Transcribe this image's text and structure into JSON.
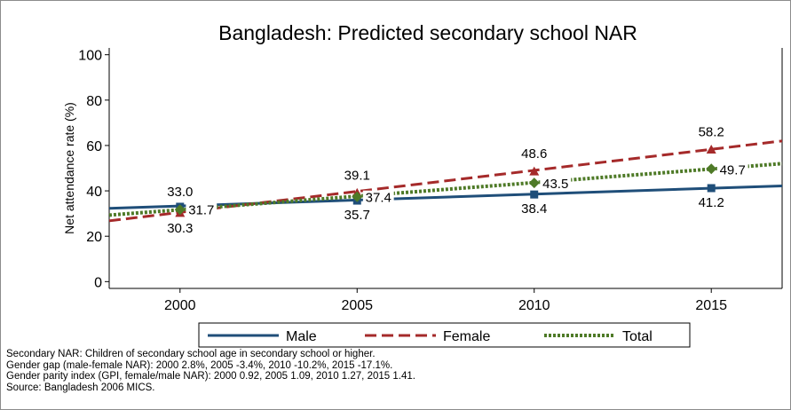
{
  "chart_data": {
    "type": "line",
    "title": "Bangladesh: Predicted secondary school NAR",
    "xlabel": "",
    "ylabel": "Net attendance rate (%)",
    "xlim": [
      1998,
      2017
    ],
    "ylim": [
      -3,
      103
    ],
    "xticks": [
      2000,
      2005,
      2010,
      2015
    ],
    "yticks": [
      0,
      20,
      40,
      60,
      80,
      100
    ],
    "grid": false,
    "legend_position": "bottom",
    "series": [
      {
        "name": "Male",
        "color": "#1f4e79",
        "style": "solid",
        "marker": "square",
        "line_x": [
          1998,
          2017
        ],
        "line_y": [
          32.3,
          42.2
        ],
        "points": [
          {
            "x": 2000,
            "y": 33.0,
            "label": "33.0"
          },
          {
            "x": 2005,
            "y": 35.7,
            "label": "35.7"
          },
          {
            "x": 2010,
            "y": 38.4,
            "label": "38.4"
          },
          {
            "x": 2015,
            "y": 41.2,
            "label": "41.2"
          }
        ]
      },
      {
        "name": "Female",
        "color": "#a52a2a",
        "style": "dashed",
        "marker": "triangle",
        "line_x": [
          1998,
          2017
        ],
        "line_y": [
          26.8,
          62.0
        ],
        "points": [
          {
            "x": 2000,
            "y": 30.3,
            "label": "30.3"
          },
          {
            "x": 2005,
            "y": 39.1,
            "label": "39.1"
          },
          {
            "x": 2010,
            "y": 48.6,
            "label": "48.6"
          },
          {
            "x": 2015,
            "y": 58.2,
            "label": "58.2"
          }
        ]
      },
      {
        "name": "Total",
        "color": "#4e7a27",
        "style": "dotted",
        "marker": "diamond",
        "line_x": [
          1998,
          2017
        ],
        "line_y": [
          29.3,
          52.0
        ],
        "points": [
          {
            "x": 2000,
            "y": 31.7,
            "label": "31.7"
          },
          {
            "x": 2005,
            "y": 37.4,
            "label": "37.4"
          },
          {
            "x": 2010,
            "y": 43.5,
            "label": "43.5"
          },
          {
            "x": 2015,
            "y": 49.7,
            "label": "49.7"
          }
        ]
      }
    ]
  },
  "notes": [
    "Secondary NAR: Children of secondary school age in secondary school or higher.",
    "Gender gap (male-female NAR): 2000 2.8%, 2005 -3.4%, 2010 -10.2%, 2015 -17.1%.",
    "Gender parity index (GPI, female/male NAR): 2000 0.92, 2005 1.09, 2010 1.27, 2015 1.41.",
    "Source: Bangladesh 2006 MICS."
  ]
}
